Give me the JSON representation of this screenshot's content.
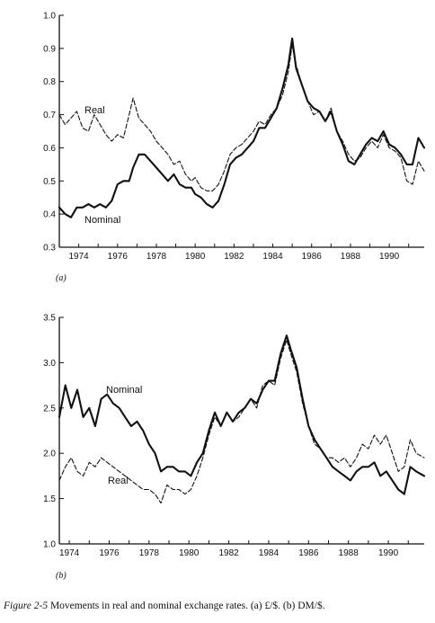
{
  "caption": {
    "label": "Figure 2-5",
    "text": "Movements in real and nominal exchange rates. (a) £/$. (b) DM/$."
  },
  "chart_data": [
    {
      "type": "line",
      "panel_label": "(a)",
      "xlim": [
        1973.0,
        1991.8
      ],
      "ylim": [
        0.3,
        1.0
      ],
      "yticks": [
        "0.3",
        "0.4",
        "0.5",
        "0.6",
        "0.7",
        "0.8",
        "0.9",
        "1.0"
      ],
      "xticks": [
        "1974",
        "1976",
        "1978",
        "1980",
        "1982",
        "1984",
        "1986",
        "1988",
        "1990"
      ],
      "grid": false,
      "series": [
        {
          "name": "Real",
          "style": "dashed",
          "x": [
            1973.0,
            1973.3,
            1973.6,
            1973.9,
            1974.2,
            1974.5,
            1974.8,
            1975.1,
            1975.4,
            1975.7,
            1976.0,
            1976.3,
            1976.6,
            1976.8,
            1977.1,
            1977.4,
            1977.7,
            1978.0,
            1978.3,
            1978.6,
            1978.9,
            1979.2,
            1979.5,
            1979.8,
            1980.0,
            1980.3,
            1980.6,
            1980.9,
            1981.2,
            1981.5,
            1981.8,
            1982.1,
            1982.4,
            1982.7,
            1983.0,
            1983.3,
            1983.6,
            1983.9,
            1984.2,
            1984.5,
            1984.8,
            1985.0,
            1985.2,
            1985.5,
            1985.8,
            1986.1,
            1986.4,
            1986.7,
            1987.0,
            1987.3,
            1987.6,
            1987.9,
            1988.2,
            1988.5,
            1988.8,
            1989.1,
            1989.4,
            1989.7,
            1990.0,
            1990.3,
            1990.6,
            1990.9,
            1991.2,
            1991.5,
            1991.8
          ],
          "y": [
            0.7,
            0.67,
            0.69,
            0.71,
            0.66,
            0.65,
            0.7,
            0.67,
            0.64,
            0.62,
            0.64,
            0.63,
            0.7,
            0.75,
            0.69,
            0.67,
            0.65,
            0.62,
            0.6,
            0.58,
            0.55,
            0.56,
            0.52,
            0.5,
            0.51,
            0.48,
            0.47,
            0.47,
            0.49,
            0.53,
            0.58,
            0.6,
            0.61,
            0.63,
            0.65,
            0.68,
            0.67,
            0.7,
            0.72,
            0.76,
            0.83,
            0.91,
            0.85,
            0.79,
            0.74,
            0.7,
            0.71,
            0.68,
            0.72,
            0.65,
            0.62,
            0.58,
            0.56,
            0.57,
            0.6,
            0.62,
            0.6,
            0.64,
            0.6,
            0.59,
            0.57,
            0.5,
            0.49,
            0.56,
            0.53
          ]
        },
        {
          "name": "Nominal",
          "style": "solid",
          "x": [
            1973.0,
            1973.3,
            1973.6,
            1973.9,
            1974.2,
            1974.5,
            1974.8,
            1975.1,
            1975.4,
            1975.7,
            1976.0,
            1976.3,
            1976.6,
            1976.8,
            1977.1,
            1977.4,
            1977.7,
            1978.0,
            1978.3,
            1978.6,
            1978.9,
            1979.2,
            1979.5,
            1979.8,
            1980.0,
            1980.3,
            1980.6,
            1980.9,
            1981.2,
            1981.5,
            1981.8,
            1982.1,
            1982.4,
            1982.7,
            1983.0,
            1983.3,
            1983.6,
            1983.9,
            1984.2,
            1984.5,
            1984.8,
            1985.0,
            1985.2,
            1985.5,
            1985.8,
            1986.1,
            1986.4,
            1986.7,
            1987.0,
            1987.3,
            1987.6,
            1987.9,
            1988.2,
            1988.5,
            1988.8,
            1989.1,
            1989.4,
            1989.7,
            1990.0,
            1990.3,
            1990.6,
            1990.9,
            1991.2,
            1991.5,
            1991.8
          ],
          "y": [
            0.42,
            0.4,
            0.39,
            0.42,
            0.42,
            0.43,
            0.42,
            0.43,
            0.42,
            0.44,
            0.49,
            0.5,
            0.5,
            0.54,
            0.58,
            0.58,
            0.56,
            0.54,
            0.52,
            0.5,
            0.52,
            0.49,
            0.48,
            0.48,
            0.46,
            0.45,
            0.43,
            0.42,
            0.44,
            0.49,
            0.55,
            0.57,
            0.58,
            0.6,
            0.62,
            0.66,
            0.66,
            0.69,
            0.72,
            0.78,
            0.85,
            0.93,
            0.84,
            0.79,
            0.74,
            0.72,
            0.71,
            0.68,
            0.71,
            0.65,
            0.61,
            0.56,
            0.55,
            0.58,
            0.61,
            0.63,
            0.62,
            0.65,
            0.61,
            0.6,
            0.58,
            0.55,
            0.55,
            0.63,
            0.6
          ]
        }
      ]
    },
    {
      "type": "line",
      "panel_label": "(b)",
      "xlim": [
        1973.5,
        1991.8
      ],
      "ylim": [
        1.0,
        3.5
      ],
      "yticks": [
        "1.0",
        "1.5",
        "2.0",
        "2.5",
        "3.0",
        "3.5"
      ],
      "xticks": [
        "1974",
        "1976",
        "1978",
        "1980",
        "1982",
        "1984",
        "1986",
        "1988",
        "1990"
      ],
      "grid": false,
      "series": [
        {
          "name": "Nominal",
          "style": "solid",
          "x": [
            1973.5,
            1973.8,
            1974.1,
            1974.4,
            1974.7,
            1975.0,
            1975.3,
            1975.6,
            1975.9,
            1976.2,
            1976.5,
            1976.8,
            1977.1,
            1977.4,
            1977.7,
            1978.0,
            1978.3,
            1978.6,
            1978.9,
            1979.2,
            1979.5,
            1979.8,
            1980.1,
            1980.4,
            1980.7,
            1981.0,
            1981.3,
            1981.6,
            1981.9,
            1982.2,
            1982.5,
            1982.8,
            1983.1,
            1983.4,
            1983.7,
            1984.0,
            1984.3,
            1984.6,
            1984.9,
            1985.1,
            1985.4,
            1985.7,
            1986.0,
            1986.3,
            1986.6,
            1986.9,
            1987.2,
            1987.5,
            1987.8,
            1988.1,
            1988.4,
            1988.7,
            1989.0,
            1989.3,
            1989.6,
            1989.9,
            1990.2,
            1990.5,
            1990.8,
            1991.1,
            1991.4,
            1991.8
          ],
          "y": [
            2.4,
            2.75,
            2.5,
            2.7,
            2.4,
            2.5,
            2.3,
            2.6,
            2.65,
            2.55,
            2.5,
            2.4,
            2.3,
            2.35,
            2.25,
            2.1,
            2.0,
            1.8,
            1.85,
            1.85,
            1.8,
            1.8,
            1.75,
            1.9,
            2.0,
            2.25,
            2.45,
            2.3,
            2.45,
            2.35,
            2.45,
            2.5,
            2.6,
            2.55,
            2.7,
            2.8,
            2.8,
            3.1,
            3.3,
            3.15,
            2.95,
            2.6,
            2.3,
            2.15,
            2.05,
            1.95,
            1.85,
            1.8,
            1.75,
            1.7,
            1.8,
            1.85,
            1.85,
            1.9,
            1.75,
            1.8,
            1.7,
            1.6,
            1.55,
            1.85,
            1.8,
            1.75
          ]
        },
        {
          "name": "Real",
          "style": "dashed",
          "x": [
            1973.5,
            1973.8,
            1974.1,
            1974.4,
            1974.7,
            1975.0,
            1975.3,
            1975.6,
            1975.9,
            1976.2,
            1976.5,
            1976.8,
            1977.1,
            1977.4,
            1977.7,
            1978.0,
            1978.3,
            1978.6,
            1978.9,
            1979.2,
            1979.5,
            1979.8,
            1980.1,
            1980.4,
            1980.7,
            1981.0,
            1981.3,
            1981.6,
            1981.9,
            1982.2,
            1982.5,
            1982.8,
            1983.1,
            1983.4,
            1983.7,
            1984.0,
            1984.3,
            1984.6,
            1984.9,
            1985.1,
            1985.4,
            1985.7,
            1986.0,
            1986.3,
            1986.6,
            1986.9,
            1987.2,
            1987.5,
            1987.8,
            1988.1,
            1988.4,
            1988.7,
            1989.0,
            1989.3,
            1989.6,
            1989.9,
            1990.2,
            1990.5,
            1990.8,
            1991.1,
            1991.4,
            1991.8
          ],
          "y": [
            1.7,
            1.85,
            1.95,
            1.8,
            1.75,
            1.9,
            1.85,
            1.95,
            1.9,
            1.85,
            1.8,
            1.75,
            1.7,
            1.65,
            1.6,
            1.6,
            1.55,
            1.45,
            1.65,
            1.6,
            1.6,
            1.55,
            1.6,
            1.75,
            1.95,
            2.2,
            2.4,
            2.3,
            2.45,
            2.35,
            2.4,
            2.5,
            2.6,
            2.5,
            2.75,
            2.8,
            2.75,
            3.05,
            3.25,
            3.1,
            2.9,
            2.55,
            2.3,
            2.1,
            2.05,
            1.95,
            1.95,
            1.9,
            1.95,
            1.85,
            1.95,
            2.1,
            2.05,
            2.2,
            2.1,
            2.2,
            2.0,
            1.8,
            1.85,
            2.15,
            2.0,
            1.95
          ]
        }
      ]
    }
  ]
}
